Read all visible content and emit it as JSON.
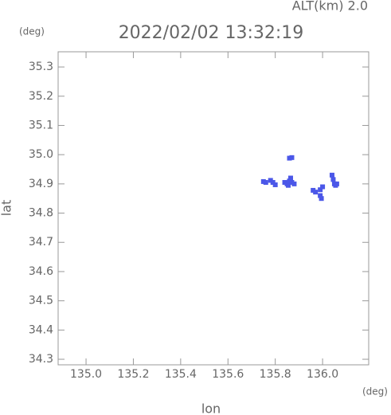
{
  "chart_data": {
    "type": "scatter",
    "title": "2022/02/02 13:32:19",
    "subtitle": "ALT(km) 2.0",
    "x_label": "lon",
    "y_label": "lat",
    "x_unit": "(deg)",
    "y_unit": "(deg)",
    "color": "#4b57e8",
    "xlim": [
      134.882,
      136.195
    ],
    "ylim": [
      34.281,
      35.352
    ],
    "xticks": [
      {
        "value": 135.0,
        "label": "135.0"
      },
      135.2,
      135.4,
      135.6,
      135.8,
      {
        "value": 136.0,
        "label": "136.0"
      }
    ],
    "yticks": [
      34.3,
      34.4,
      34.5,
      34.6,
      34.7,
      34.8,
      34.9,
      {
        "value": 35.0,
        "label": "35.0"
      },
      35.1,
      35.2,
      35.3
    ],
    "x": [
      135.75,
      135.76,
      135.78,
      135.79,
      135.8,
      135.84,
      135.85,
      135.855,
      135.86,
      135.865,
      135.87,
      135.86,
      135.87,
      135.88,
      135.96,
      135.97,
      135.99,
      136.0,
      135.99,
      135.995,
      136.04,
      136.045,
      136.05,
      136.055,
      136.06
    ],
    "values": [
      34.908,
      34.905,
      34.912,
      34.905,
      34.897,
      34.905,
      34.9,
      34.895,
      34.91,
      34.92,
      34.905,
      34.988,
      34.99,
      34.9,
      34.878,
      34.872,
      34.88,
      34.89,
      34.86,
      34.85,
      34.93,
      34.915,
      34.9,
      34.895,
      34.9
    ]
  }
}
